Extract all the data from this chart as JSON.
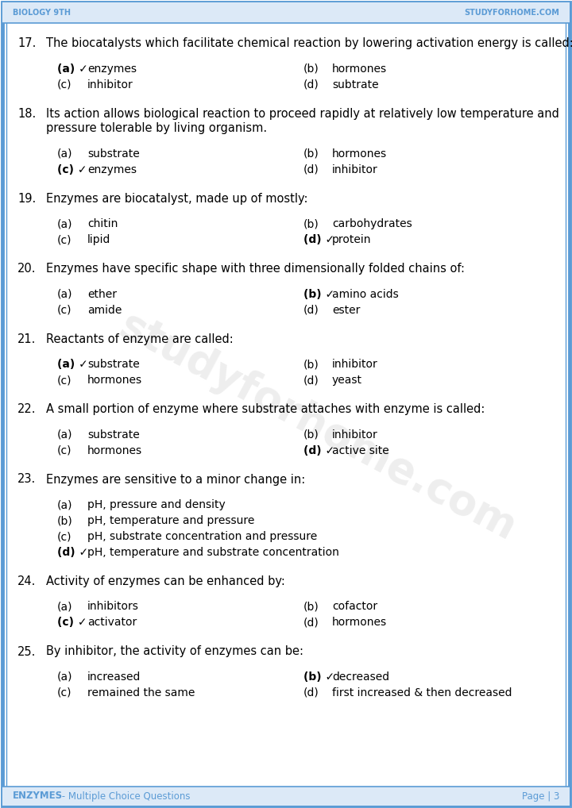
{
  "header_left": "Biology 9th",
  "header_right": "StudyForHome.Com",
  "footer_left": "ENZYMES",
  "footer_left2": " - Multiple Choice Questions",
  "footer_right": "Page | 3",
  "watermark": "studyforhome.com",
  "border_color": "#5b9bd5",
  "header_bg": "#dce9f7",
  "footer_bg": "#dce9f7",
  "text_color": "#000000",
  "bg_color": "#ffffff",
  "questions": [
    {
      "num": "17.",
      "question": "The biocatalysts which facilitate chemical reaction by lowering activation energy is called:",
      "multiline": false,
      "options": [
        {
          "label": "(a)",
          "check": true,
          "text": "enzymes",
          "col": "left"
        },
        {
          "label": "(b)",
          "check": false,
          "text": "hormones",
          "col": "right"
        },
        {
          "label": "(c)",
          "check": false,
          "text": "inhibitor",
          "col": "left"
        },
        {
          "label": "(d)",
          "check": false,
          "text": "subtrate",
          "col": "right"
        }
      ]
    },
    {
      "num": "18.",
      "question": "Its action allows biological reaction to proceed rapidly at relatively low temperature and pressure tolerable by living organism.",
      "multiline": true,
      "split_at": 79,
      "options": [
        {
          "label": "(a)",
          "check": false,
          "text": "substrate",
          "col": "left"
        },
        {
          "label": "(b)",
          "check": false,
          "text": "hormones",
          "col": "right"
        },
        {
          "label": "(c)",
          "check": true,
          "text": "enzymes",
          "col": "left"
        },
        {
          "label": "(d)",
          "check": false,
          "text": "inhibitor",
          "col": "right"
        }
      ]
    },
    {
      "num": "19.",
      "question": "Enzymes are biocatalyst, made up of mostly:",
      "multiline": false,
      "options": [
        {
          "label": "(a)",
          "check": false,
          "text": "chitin",
          "col": "left"
        },
        {
          "label": "(b)",
          "check": false,
          "text": "carbohydrates",
          "col": "right"
        },
        {
          "label": "(c)",
          "check": false,
          "text": "lipid",
          "col": "left"
        },
        {
          "label": "(d)",
          "check": true,
          "text": "protein",
          "col": "right"
        }
      ]
    },
    {
      "num": "20.",
      "question": "Enzymes have specific shape with three dimensionally folded chains of:",
      "multiline": false,
      "options": [
        {
          "label": "(a)",
          "check": false,
          "text": "ether",
          "col": "left"
        },
        {
          "label": "(b)",
          "check": true,
          "text": "amino acids",
          "col": "right"
        },
        {
          "label": "(c)",
          "check": false,
          "text": "amide",
          "col": "left"
        },
        {
          "label": "(d)",
          "check": false,
          "text": "ester",
          "col": "right"
        }
      ]
    },
    {
      "num": "21.",
      "question": "Reactants of enzyme are called:",
      "multiline": false,
      "options": [
        {
          "label": "(a)",
          "check": true,
          "text": "substrate",
          "col": "left"
        },
        {
          "label": "(b)",
          "check": false,
          "text": "inhibitor",
          "col": "right"
        },
        {
          "label": "(c)",
          "check": false,
          "text": "hormones",
          "col": "left"
        },
        {
          "label": "(d)",
          "check": false,
          "text": "yeast",
          "col": "right"
        }
      ]
    },
    {
      "num": "22.",
      "question": "A small portion of enzyme where substrate attaches with enzyme is called:",
      "multiline": false,
      "options": [
        {
          "label": "(a)",
          "check": false,
          "text": "substrate",
          "col": "left"
        },
        {
          "label": "(b)",
          "check": false,
          "text": "inhibitor",
          "col": "right"
        },
        {
          "label": "(c)",
          "check": false,
          "text": "hormones",
          "col": "left"
        },
        {
          "label": "(d)",
          "check": true,
          "text": "active site",
          "col": "right"
        }
      ]
    },
    {
      "num": "23.",
      "question": "Enzymes are sensitive to a minor change in:",
      "multiline": false,
      "options4col": [
        {
          "label": "(a)",
          "check": false,
          "text": "pH, pressure and density"
        },
        {
          "label": "(b)",
          "check": false,
          "text": "pH, temperature and pressure"
        },
        {
          "label": "(c)",
          "check": false,
          "text": "pH, substrate concentration and pressure"
        },
        {
          "label": "(d)",
          "check": true,
          "text": "pH, temperature and substrate concentration"
        }
      ]
    },
    {
      "num": "24.",
      "question": "Activity of enzymes can be enhanced by:",
      "multiline": false,
      "options": [
        {
          "label": "(a)",
          "check": false,
          "text": "inhibitors",
          "col": "left"
        },
        {
          "label": "(b)",
          "check": false,
          "text": "cofactor",
          "col": "right"
        },
        {
          "label": "(c)",
          "check": true,
          "text": "activator",
          "col": "left"
        },
        {
          "label": "(d)",
          "check": false,
          "text": "hormones",
          "col": "right"
        }
      ]
    },
    {
      "num": "25.",
      "question": "By inhibitor, the activity of enzymes can be:",
      "multiline": false,
      "options": [
        {
          "label": "(a)",
          "check": false,
          "text": "increased",
          "col": "left"
        },
        {
          "label": "(b)",
          "check": true,
          "text": "decreased",
          "col": "right"
        },
        {
          "label": "(c)",
          "check": false,
          "text": "remained the same",
          "col": "left"
        },
        {
          "label": "(d)",
          "check": false,
          "text": "first increased & then decreased",
          "col": "right"
        }
      ]
    }
  ]
}
